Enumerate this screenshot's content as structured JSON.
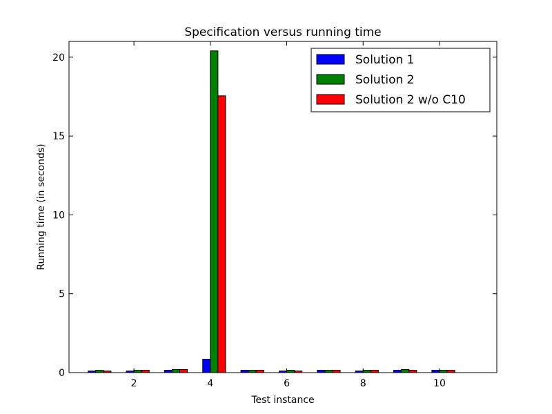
{
  "chart_data": {
    "type": "bar",
    "title": "Specification versus running time",
    "xlabel": "Test instance",
    "ylabel": "Running time (in seconds)",
    "x": [
      1,
      2,
      3,
      4,
      5,
      6,
      7,
      8,
      9,
      10
    ],
    "xlim": [
      0.3,
      11.5
    ],
    "ylim": [
      0,
      21
    ],
    "xticks": [
      2,
      4,
      6,
      8,
      10
    ],
    "yticks": [
      0,
      5,
      10,
      15,
      20
    ],
    "xtick_labels": [
      "2",
      "4",
      "6",
      "8",
      "10"
    ],
    "ytick_labels": [
      "0",
      "5",
      "10",
      "15",
      "20"
    ],
    "bar_width": 0.2,
    "grid": false,
    "legend_position": "top-right",
    "series": [
      {
        "name": "Solution 1",
        "color": "#0000ff",
        "values": [
          0.1,
          0.1,
          0.15,
          0.85,
          0.15,
          0.1,
          0.15,
          0.1,
          0.15,
          0.15
        ]
      },
      {
        "name": "Solution 2",
        "color": "#008000",
        "values": [
          0.15,
          0.15,
          0.2,
          20.4,
          0.15,
          0.15,
          0.15,
          0.15,
          0.2,
          0.15
        ]
      },
      {
        "name": "Solution 2 w/o C10",
        "color": "#ff0000",
        "values": [
          0.1,
          0.15,
          0.2,
          17.55,
          0.15,
          0.1,
          0.15,
          0.15,
          0.15,
          0.15
        ]
      }
    ]
  }
}
